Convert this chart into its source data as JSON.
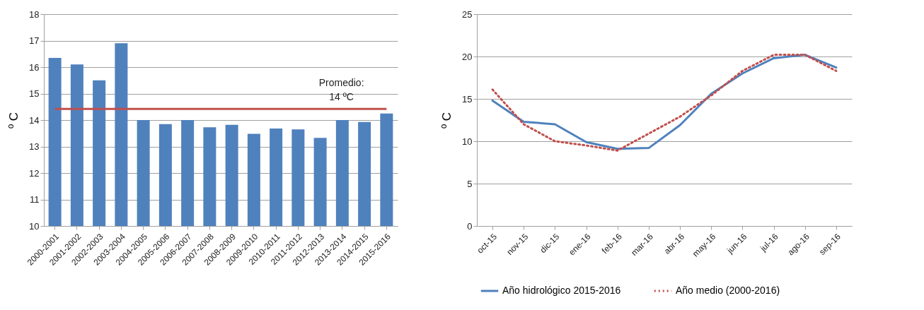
{
  "chart_data": [
    {
      "type": "bar",
      "ylabel": "º C",
      "categories": [
        "2000-2001",
        "2001-2002",
        "2002-2003",
        "2003-2004",
        "2004-2005",
        "2005-2006",
        "2006-2007",
        "2007-2008",
        "2008-2009",
        "2009-2010",
        "2010-2011",
        "2011-2012",
        "2012-2013",
        "2013-2014",
        "2014-2015",
        "2015-2016"
      ],
      "series": [
        {
          "color": "#4f81bd",
          "values": [
            16.35,
            16.1,
            15.5,
            16.9,
            14.0,
            13.85,
            14.0,
            13.73,
            13.82,
            13.48,
            13.68,
            13.65,
            13.33,
            14.0,
            13.93,
            14.25
          ]
        }
      ],
      "ylim": [
        10,
        18
      ],
      "yticks": [
        10,
        11,
        12,
        13,
        14,
        15,
        16,
        17,
        18
      ],
      "grid": "y",
      "ref_lines": [
        {
          "axis": "y",
          "value": 14.42,
          "label": "Promedio:\n14 ºC",
          "color": "#c0504d"
        }
      ]
    },
    {
      "type": "line",
      "ylabel": "º C",
      "categories": [
        "oct-15",
        "nov-15",
        "dic-15",
        "ene-16",
        "feb-16",
        "mar-16",
        "abr-16",
        "may-16",
        "jun-16",
        "jul-16",
        "ago-16",
        "sep-16"
      ],
      "series": [
        {
          "name": "Año hidrológico 2015-2016",
          "color": "#4f81bd",
          "line_style": "solid",
          "values": [
            14.8,
            12.3,
            12.0,
            9.9,
            9.1,
            9.2,
            11.9,
            15.6,
            18.0,
            19.8,
            20.2,
            18.7
          ]
        },
        {
          "name": "Año medio (2000-2016)",
          "color": "#c0504d",
          "line_style": "dotted",
          "values": [
            16.1,
            12.0,
            10.0,
            9.5,
            8.9,
            10.9,
            12.9,
            15.4,
            18.3,
            20.2,
            20.2,
            18.3
          ]
        }
      ],
      "ylim": [
        0,
        25
      ],
      "yticks": [
        0,
        5,
        10,
        15,
        20,
        25
      ],
      "grid": "y",
      "legend": "bottom"
    }
  ]
}
